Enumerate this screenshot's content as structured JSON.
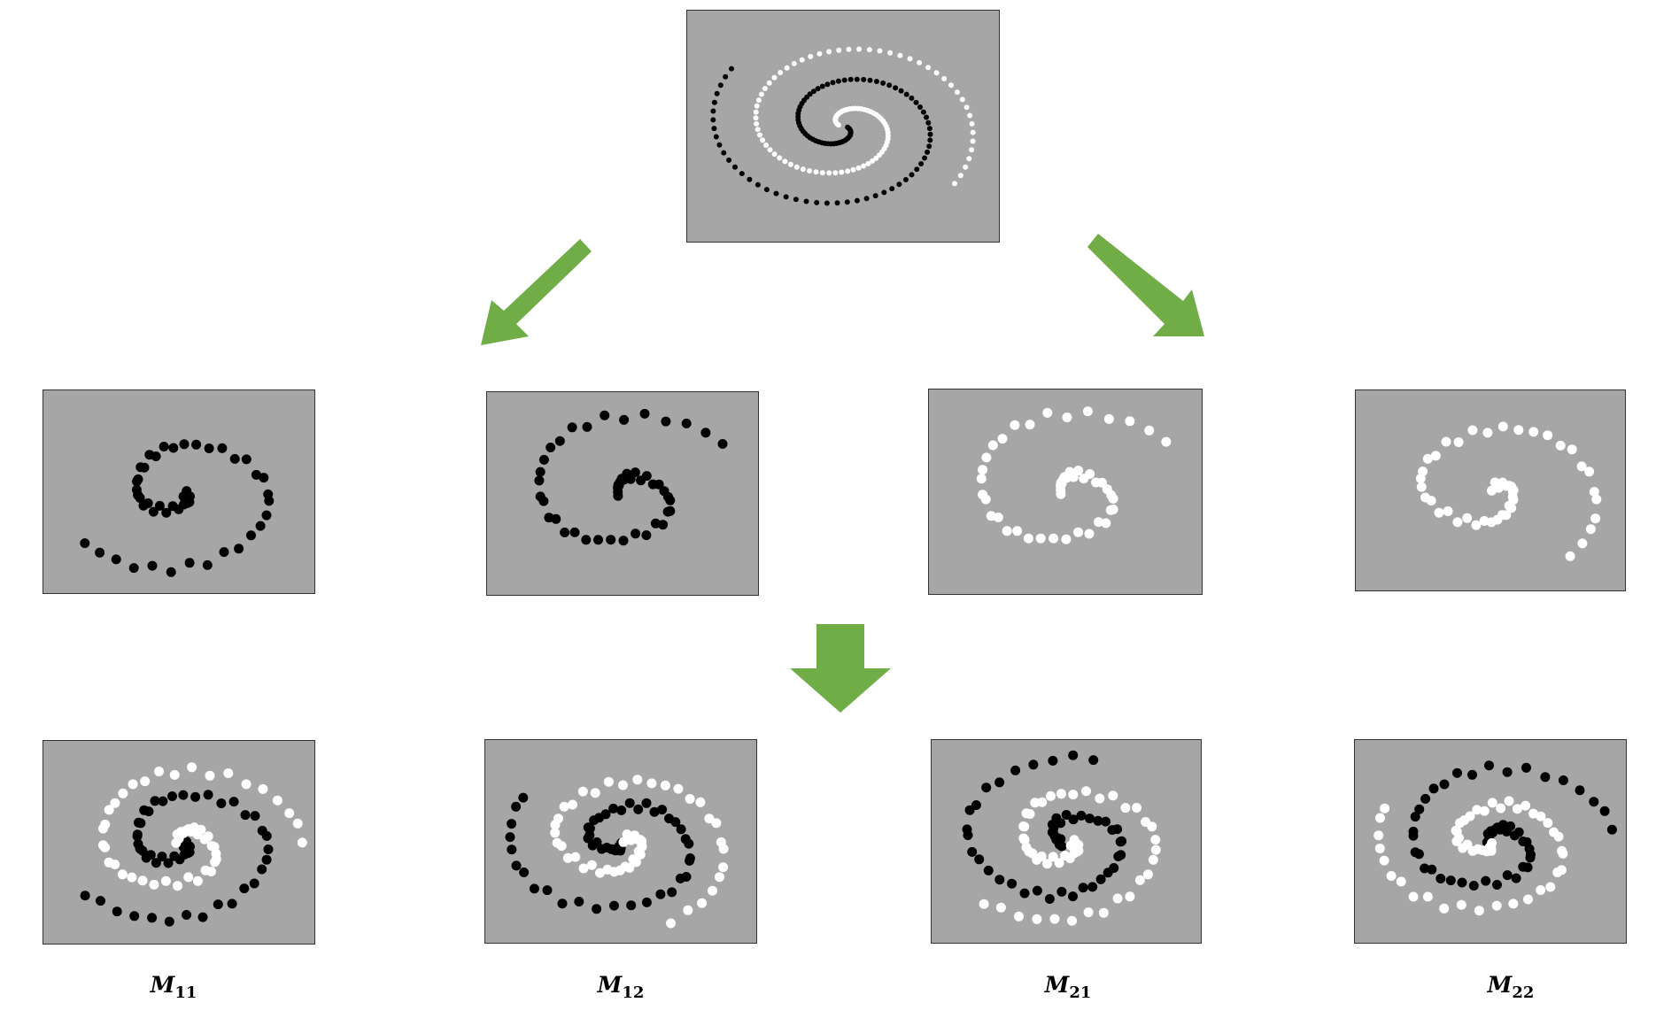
{
  "colors": {
    "panel_bg": "#a6a6a6",
    "arrow": "#70ad47",
    "class_a": "#000000",
    "class_b": "#ffffff"
  },
  "top_panel": {
    "name": "two-spirals-full"
  },
  "second_row": [
    {
      "name": "split-11",
      "color": "black",
      "spiral": "A",
      "rot": 0.0
    },
    {
      "name": "split-12",
      "color": "black",
      "spiral": "A",
      "rot": 3.14
    },
    {
      "name": "split-21",
      "color": "white",
      "spiral": "B",
      "rot": 0.0
    },
    {
      "name": "split-22",
      "color": "white",
      "spiral": "B",
      "rot": 1.5
    }
  ],
  "third_row": [
    {
      "name": "merged-11",
      "rot": 0.0
    },
    {
      "name": "merged-12",
      "rot": 1.2
    },
    {
      "name": "merged-21",
      "rot": 2.4
    },
    {
      "name": "merged-22",
      "rot": 3.6
    }
  ],
  "captions": [
    {
      "symbol": "M",
      "subscript": "11"
    },
    {
      "symbol": "M",
      "subscript": "12"
    },
    {
      "symbol": "M",
      "subscript": "21"
    },
    {
      "symbol": "M",
      "subscript": "22"
    }
  ]
}
